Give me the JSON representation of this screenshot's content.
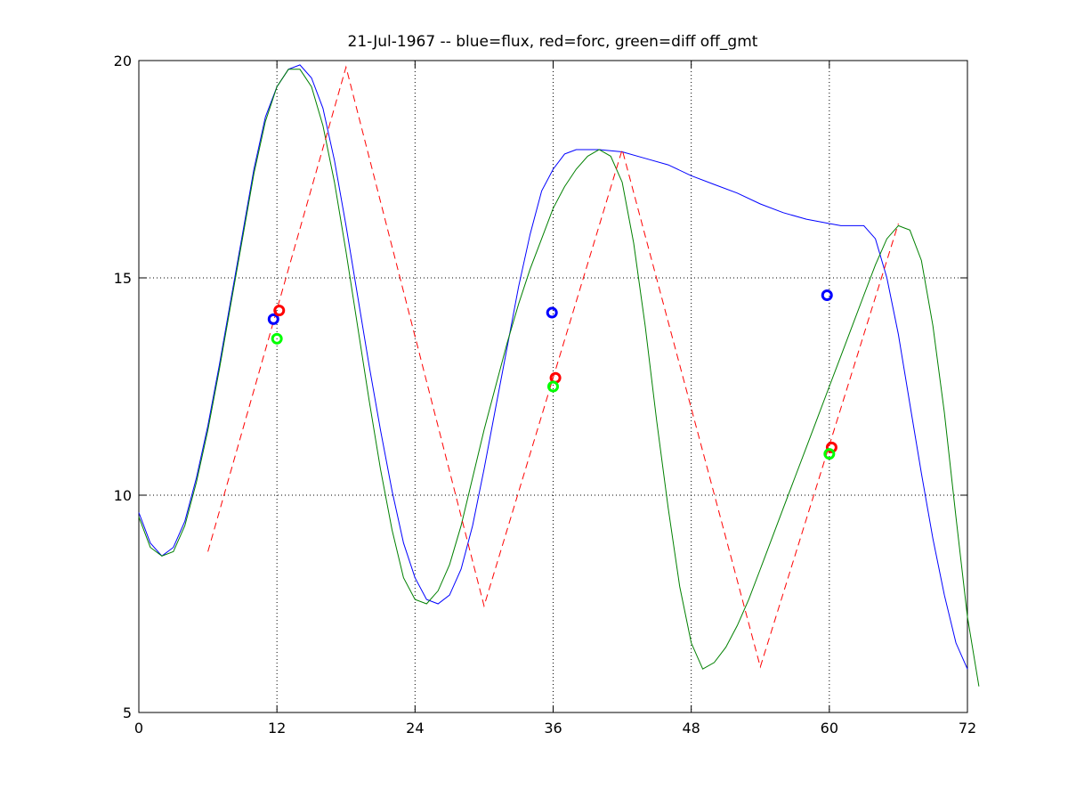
{
  "chart_data": {
    "type": "line",
    "title": "21-Jul-1967 -- blue=flux, red=forc, green=diff off_gmt",
    "xlabel": "",
    "ylabel": "",
    "xlim": [
      0,
      72
    ],
    "ylim": [
      5,
      20
    ],
    "x_ticks": [
      0,
      12,
      24,
      36,
      48,
      60,
      72
    ],
    "y_ticks": [
      5,
      10,
      15,
      20
    ],
    "x_tick_labels": [
      "0",
      "12",
      "24",
      "36",
      "48",
      "60",
      "72"
    ],
    "y_tick_labels": [
      "5",
      "10",
      "15",
      "20"
    ],
    "grid": "dotted",
    "series": [
      {
        "color": "#0000ff",
        "style": "solid",
        "points": [
          [
            0,
            9.6
          ],
          [
            1,
            8.9
          ],
          [
            2,
            8.6
          ],
          [
            3,
            8.8
          ],
          [
            4,
            9.4
          ],
          [
            5,
            10.4
          ],
          [
            6,
            11.6
          ],
          [
            7,
            13.0
          ],
          [
            8,
            14.5
          ],
          [
            9,
            16.0
          ],
          [
            10,
            17.5
          ],
          [
            11,
            18.7
          ],
          [
            12,
            19.4
          ],
          [
            13,
            19.8
          ],
          [
            14,
            19.9
          ],
          [
            15,
            19.6
          ],
          [
            16,
            18.9
          ],
          [
            17,
            17.7
          ],
          [
            18,
            16.2
          ],
          [
            19,
            14.6
          ],
          [
            20,
            13.0
          ],
          [
            21,
            11.5
          ],
          [
            22,
            10.1
          ],
          [
            23,
            8.9
          ],
          [
            24,
            8.1
          ],
          [
            25,
            7.6
          ],
          [
            26,
            7.5
          ],
          [
            27,
            7.7
          ],
          [
            28,
            8.3
          ],
          [
            29,
            9.3
          ],
          [
            30,
            10.6
          ],
          [
            31,
            12.0
          ],
          [
            32,
            13.4
          ],
          [
            33,
            14.8
          ],
          [
            34,
            16.0
          ],
          [
            35,
            17.0
          ],
          [
            36,
            17.5
          ],
          [
            37,
            17.85
          ],
          [
            38,
            17.95
          ],
          [
            39,
            17.95
          ],
          [
            40,
            17.95
          ],
          [
            42,
            17.9
          ],
          [
            44,
            17.75
          ],
          [
            46,
            17.6
          ],
          [
            48,
            17.35
          ],
          [
            50,
            17.15
          ],
          [
            52,
            16.95
          ],
          [
            54,
            16.7
          ],
          [
            56,
            16.5
          ],
          [
            58,
            16.35
          ],
          [
            60,
            16.25
          ],
          [
            61,
            16.2
          ],
          [
            62,
            16.2
          ],
          [
            63,
            16.2
          ],
          [
            64,
            15.9
          ],
          [
            65,
            15.0
          ],
          [
            66,
            13.7
          ],
          [
            67,
            12.1
          ],
          [
            68,
            10.5
          ],
          [
            69,
            9.0
          ],
          [
            70,
            7.7
          ],
          [
            71,
            6.6
          ],
          [
            72,
            6.0
          ]
        ]
      },
      {
        "color": "#008000",
        "style": "solid",
        "points": [
          [
            0,
            9.5
          ],
          [
            1,
            8.8
          ],
          [
            2,
            8.6
          ],
          [
            3,
            8.7
          ],
          [
            4,
            9.3
          ],
          [
            5,
            10.3
          ],
          [
            6,
            11.5
          ],
          [
            7,
            12.9
          ],
          [
            8,
            14.4
          ],
          [
            9,
            15.9
          ],
          [
            10,
            17.4
          ],
          [
            11,
            18.6
          ],
          [
            12,
            19.4
          ],
          [
            13,
            19.8
          ],
          [
            14,
            19.8
          ],
          [
            15,
            19.4
          ],
          [
            16,
            18.5
          ],
          [
            17,
            17.2
          ],
          [
            18,
            15.6
          ],
          [
            19,
            13.9
          ],
          [
            20,
            12.2
          ],
          [
            21,
            10.6
          ],
          [
            22,
            9.2
          ],
          [
            23,
            8.1
          ],
          [
            24,
            7.6
          ],
          [
            25,
            7.5
          ],
          [
            26,
            7.8
          ],
          [
            27,
            8.4
          ],
          [
            28,
            9.3
          ],
          [
            29,
            10.4
          ],
          [
            30,
            11.5
          ],
          [
            31,
            12.5
          ],
          [
            32,
            13.5
          ],
          [
            33,
            14.4
          ],
          [
            34,
            15.2
          ],
          [
            35,
            15.9
          ],
          [
            36,
            16.6
          ],
          [
            37,
            17.1
          ],
          [
            38,
            17.5
          ],
          [
            39,
            17.8
          ],
          [
            40,
            17.95
          ],
          [
            41,
            17.8
          ],
          [
            42,
            17.2
          ],
          [
            43,
            15.8
          ],
          [
            44,
            13.9
          ],
          [
            45,
            11.7
          ],
          [
            46,
            9.7
          ],
          [
            47,
            7.9
          ],
          [
            48,
            6.6
          ],
          [
            49,
            6.0
          ],
          [
            50,
            6.15
          ],
          [
            51,
            6.5
          ],
          [
            52,
            7.0
          ],
          [
            53,
            7.6
          ],
          [
            54,
            8.3
          ],
          [
            55,
            9.0
          ],
          [
            56,
            9.7
          ],
          [
            57,
            10.4
          ],
          [
            58,
            11.1
          ],
          [
            59,
            11.8
          ],
          [
            60,
            12.5
          ],
          [
            61,
            13.2
          ],
          [
            62,
            13.9
          ],
          [
            63,
            14.6
          ],
          [
            64,
            15.3
          ],
          [
            65,
            15.9
          ],
          [
            66,
            16.2
          ],
          [
            67,
            16.1
          ],
          [
            68,
            15.4
          ],
          [
            69,
            13.9
          ],
          [
            70,
            11.9
          ],
          [
            71,
            9.5
          ],
          [
            72,
            7.2
          ],
          [
            73,
            5.6
          ]
        ]
      },
      {
        "color": "#ff0000",
        "style": "dashed",
        "points": [
          [
            6,
            8.7
          ],
          [
            18,
            19.85
          ],
          [
            30,
            7.45
          ],
          [
            42,
            17.95
          ],
          [
            54,
            6.05
          ],
          [
            66,
            16.25
          ]
        ]
      }
    ],
    "markers": [
      {
        "color": "#0000ff",
        "x": 11.7,
        "y": 14.05
      },
      {
        "color": "#ff0000",
        "x": 12.2,
        "y": 14.25
      },
      {
        "color": "#00ff00",
        "x": 12.0,
        "y": 13.6
      },
      {
        "color": "#0000ff",
        "x": 35.9,
        "y": 14.2
      },
      {
        "color": "#ff0000",
        "x": 36.2,
        "y": 12.7
      },
      {
        "color": "#00ff00",
        "x": 36.0,
        "y": 12.5
      },
      {
        "color": "#0000ff",
        "x": 59.8,
        "y": 14.6
      },
      {
        "color": "#ff0000",
        "x": 60.2,
        "y": 11.1
      },
      {
        "color": "#00ff00",
        "x": 60.0,
        "y": 10.95
      }
    ]
  }
}
